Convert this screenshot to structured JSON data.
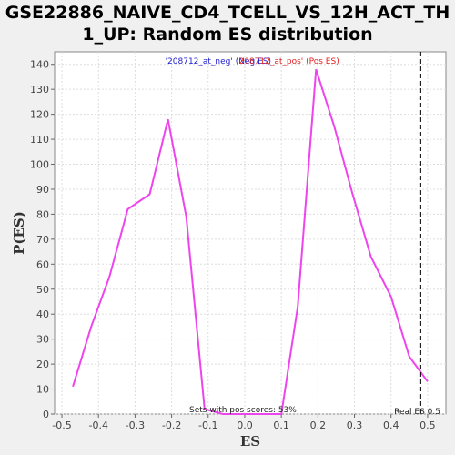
{
  "chart_data": {
    "type": "line",
    "title_lines": [
      "GSE22886_NAIVE_CD4_TCELL_VS_12H_ACT_TH",
      "1_UP: Random ES distribution"
    ],
    "xlabel": "ES",
    "ylabel": "P(ES)",
    "xlim": [
      -0.52,
      0.55
    ],
    "ylim": [
      0,
      145
    ],
    "x_ticks": [
      "-0.5",
      "-0.4",
      "-0.3",
      "-0.2",
      "-0.1",
      "0.0",
      "0.1",
      "0.2",
      "0.3",
      "0.4",
      "0.5"
    ],
    "y_ticks": [
      "0",
      "10",
      "20",
      "30",
      "40",
      "50",
      "60",
      "70",
      "80",
      "90",
      "100",
      "110",
      "120",
      "130",
      "140"
    ],
    "grid": true,
    "legend": {
      "placement": "top-center",
      "neg_label": "'208712_at_neg' (Neg ES)",
      "pos_label": "'208712_at_pos' (Pos ES)",
      "neg_color": "#2020d0",
      "pos_color": "#e02020"
    },
    "series": [
      {
        "color": "#ee44ee",
        "x": [
          -0.47,
          -0.42,
          -0.37,
          -0.32,
          -0.26,
          -0.21,
          -0.16,
          -0.11,
          -0.06,
          0.0,
          0.05,
          0.1,
          0.145,
          0.195,
          0.245,
          0.295,
          0.345,
          0.4,
          0.45,
          0.5
        ],
        "y": [
          11,
          35,
          55,
          82,
          88,
          118,
          79,
          2,
          0,
          0,
          0,
          0,
          43,
          138,
          115,
          88,
          63,
          47,
          23,
          13
        ]
      }
    ],
    "real_es": {
      "value": 0.48,
      "label": "Real ES 0.5"
    },
    "pos_scores_note": "Sets with pos scores: 53%"
  }
}
